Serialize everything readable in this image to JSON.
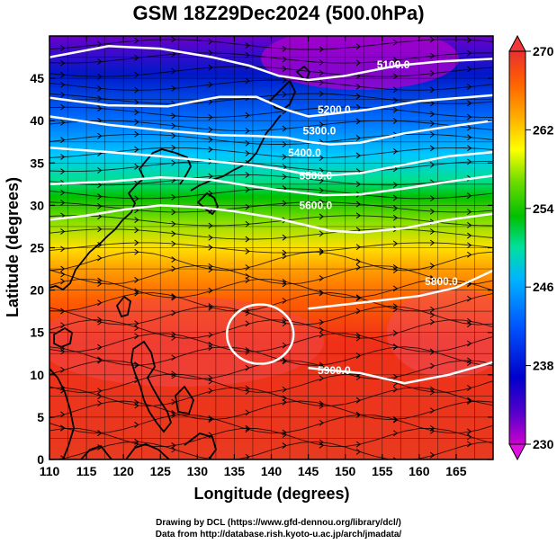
{
  "title": "GSM 18Z29Dec2024 (500.0hPa)",
  "credits": {
    "line1": "Drawing by DCL (https://www.gfd-dennou.org/library/dcl/)",
    "line2": "Data from http://database.rish.kyoto-u.ac.jp/arch/jmadata/"
  },
  "map": {
    "xlabel": "Longitude (degrees)",
    "ylabel": "Latitude  (degrees)",
    "xlim": [
      110,
      170
    ],
    "ylim": [
      0,
      50
    ],
    "xticks": [
      110,
      115,
      120,
      125,
      130,
      135,
      140,
      145,
      150,
      155,
      160,
      165
    ],
    "yticks": [
      0,
      5,
      10,
      15,
      20,
      25,
      30,
      35,
      40,
      45
    ],
    "colorbar": {
      "min": 230,
      "max": 270,
      "ticks": [
        230,
        238,
        246,
        254,
        262,
        270
      ],
      "colors": [
        "#cc00cc",
        "#5500cc",
        "#0000cc",
        "#0055ff",
        "#00b4ff",
        "#00e0a0",
        "#00c000",
        "#70dd00",
        "#ffff00",
        "#ffb000",
        "#ff6000",
        "#f03818",
        "#e85040"
      ]
    },
    "contours": [
      {
        "label": "5100.0",
        "lon": [
          110,
          118,
          125,
          132,
          137,
          141,
          145,
          150,
          157,
          163,
          170
        ],
        "lat": [
          47.5,
          48.8,
          48.5,
          47.5,
          46.5,
          45.3,
          44.8,
          45.3,
          46.5,
          47.0,
          47.3
        ],
        "label_lon": 156.5,
        "label_lat": 46.6
      },
      {
        "label": "5200.0",
        "lon": [
          110,
          118,
          126,
          133,
          138,
          142,
          145,
          148,
          153,
          160,
          170
        ],
        "lat": [
          42.7,
          41.8,
          41.7,
          42.8,
          42.8,
          41.3,
          40.5,
          40.8,
          41.3,
          42.3,
          43.0
        ],
        "label_lon": 148.5,
        "label_lat": 41.3
      },
      {
        "label": "5300.0",
        "lon": [
          110,
          118,
          126,
          133,
          138,
          142,
          145,
          148,
          152,
          158,
          164,
          170
        ],
        "lat": [
          40.5,
          39.5,
          38.8,
          38.3,
          38.2,
          38.0,
          37.5,
          37.2,
          37.4,
          38.5,
          39.3,
          40.0
        ],
        "label_lon": 146.5,
        "label_lat": 38.8
      },
      {
        "label": "5400.0",
        "lon": [
          110,
          118,
          125,
          132,
          137,
          141,
          144,
          147,
          152,
          158,
          164,
          170
        ],
        "lat": [
          36.8,
          36.3,
          35.8,
          35.2,
          34.8,
          34.3,
          33.8,
          33.5,
          33.8,
          34.8,
          35.8,
          36.3
        ],
        "label_lon": 144.5,
        "label_lat": 36.2
      },
      {
        "label": "5500.0",
        "lon": [
          110,
          118,
          125,
          132,
          137,
          141,
          144,
          147,
          152,
          158,
          164,
          170
        ],
        "lat": [
          32.5,
          32.8,
          33.3,
          33.0,
          32.3,
          31.8,
          31.5,
          31.2,
          31.3,
          32.0,
          32.8,
          33.5
        ],
        "label_lon": 146.0,
        "label_lat": 33.5
      },
      {
        "label": "5600.0",
        "lon": [
          110,
          115,
          120,
          125,
          130,
          135,
          140,
          144,
          148,
          152,
          158,
          164,
          170
        ],
        "lat": [
          28.3,
          28.8,
          29.5,
          30.0,
          29.8,
          29.3,
          28.6,
          27.8,
          27.0,
          26.8,
          27.3,
          28.3,
          29.0
        ],
        "label_lon": 146.0,
        "label_lat": 30.0
      },
      {
        "label": "5800.0",
        "lon": [
          145,
          150,
          155,
          160,
          165,
          170
        ],
        "lat": [
          17.8,
          18.3,
          18.8,
          19.3,
          20.3,
          22.3
        ],
        "label_lon": 163.0,
        "label_lat": 21.0
      },
      {
        "label": "5900.0",
        "lon": [
          145,
          152,
          158,
          164,
          170
        ],
        "lat": [
          10.8,
          10.2,
          9.0,
          10.0,
          11.5
        ],
        "label_lon": 148.5,
        "label_lat": 10.5
      }
    ],
    "closed_contours": [
      {
        "cx_lon": 138.5,
        "cy_lat": 14.8,
        "rx_deg": 4.5,
        "ry_deg": 3.5
      }
    ]
  }
}
